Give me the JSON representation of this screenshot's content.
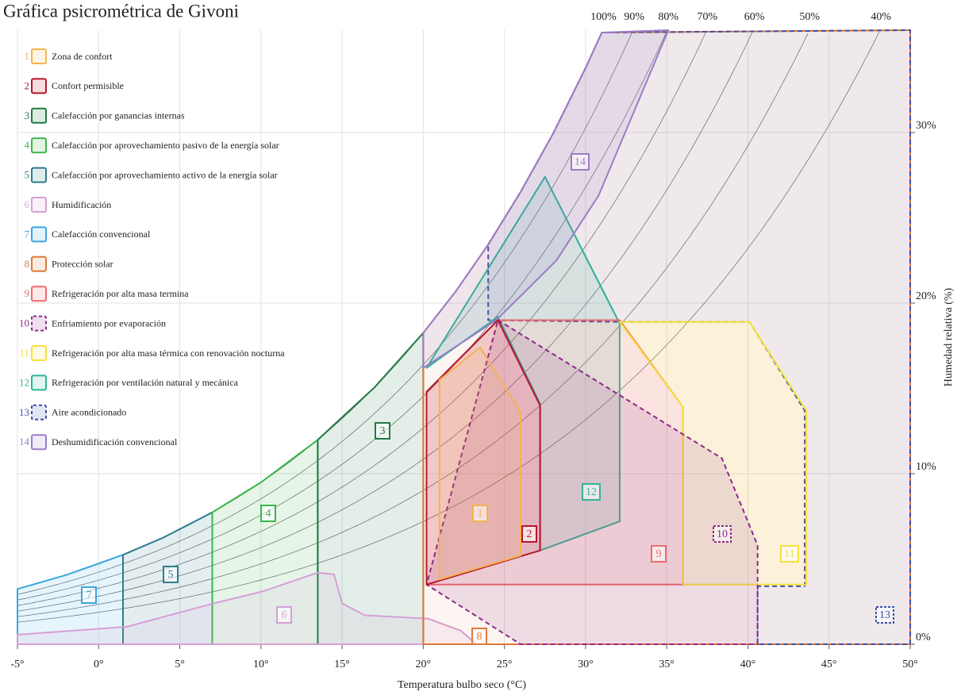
{
  "chart_data": {
    "type": "psychrometric",
    "title": "Gráfica psicrométrica de Givoni",
    "x_label": "Temperatura bulbo seco (°C)",
    "y_label": "Humedad relativa (%)",
    "xlim": [
      -5,
      50
    ],
    "ylim": [
      0,
      36
    ],
    "xticks": [
      {
        "value": -5,
        "label": "-5°"
      },
      {
        "value": 0,
        "label": "0°"
      },
      {
        "value": 5,
        "label": "5°"
      },
      {
        "value": 10,
        "label": "10°"
      },
      {
        "value": 15,
        "label": "15°"
      },
      {
        "value": 20,
        "label": "20°"
      },
      {
        "value": 25,
        "label": "25°"
      },
      {
        "value": 30,
        "label": "30°"
      },
      {
        "value": 35,
        "label": "35°"
      },
      {
        "value": 40,
        "label": "40°"
      },
      {
        "value": 45,
        "label": "45°"
      },
      {
        "value": 50,
        "label": "50°"
      }
    ],
    "yticks": [
      {
        "value": 0,
        "label": "0%"
      },
      {
        "value": 10,
        "label": "10%"
      },
      {
        "value": 20,
        "label": "20%"
      },
      {
        "value": 30,
        "label": "30%"
      }
    ],
    "grid": true,
    "rh_curves": [
      {
        "value": 100,
        "label": "100%"
      },
      {
        "value": 90,
        "label": "90%"
      },
      {
        "value": 80,
        "label": "80%"
      },
      {
        "value": 70,
        "label": "70%"
      },
      {
        "value": 60,
        "label": "60%"
      },
      {
        "value": 50,
        "label": "50%"
      },
      {
        "value": 40,
        "label": "40%"
      }
    ],
    "zones": [
      {
        "id": "1",
        "label": "Zona de confort",
        "color": "#f6b24f",
        "dashed": false,
        "x": [
          21,
          23.5,
          26,
          26,
          21
        ],
        "y": [
          15.5,
          17.4,
          13.6,
          5.2,
          3.8
        ]
      },
      {
        "id": "2",
        "label": "Confort permisible",
        "color": "#b5162b",
        "dashed": false,
        "x": [
          20.2,
          24.6,
          27.2,
          27.2,
          20.2
        ],
        "y": [
          14.8,
          19.0,
          14.0,
          5.5,
          3.5
        ]
      },
      {
        "id": "3",
        "label": "Calefacción por ganancias internas",
        "color": "#1f7a43",
        "dashed": false,
        "x": [
          13.5,
          20,
          20,
          17,
          13.5
        ],
        "y": [
          0,
          0,
          18.25,
          15.06,
          11.98
        ]
      },
      {
        "id": "4",
        "label": "Calefacción por aprovechamiento pasivo de la energía solar",
        "color": "#3bb54a",
        "dashed": false,
        "x": [
          7,
          13.5,
          13.5,
          10,
          7
        ],
        "y": [
          0,
          0,
          11.98,
          9.49,
          7.73
        ]
      },
      {
        "id": "5",
        "label": "Calefacción por aprovechamiento activo de la energía solar",
        "color": "#2d7d8c",
        "dashed": false,
        "x": [
          1.5,
          7,
          7,
          4,
          1.5
        ],
        "y": [
          0,
          0,
          7.73,
          6.26,
          5.24
        ]
      },
      {
        "id": "6",
        "label": "Humidificación",
        "color": "#d79fd6",
        "dashed": false,
        "x": [
          -5,
          1.75,
          7.1,
          10.1,
          13.5,
          14.5,
          15,
          16.4,
          20.3,
          22.3,
          23.3,
          -5
        ],
        "y": [
          0.56,
          1.03,
          2.4,
          3.1,
          4.2,
          4.1,
          2.4,
          1.7,
          1.5,
          0.8,
          0,
          0
        ]
      },
      {
        "id": "7",
        "label": "Calefacción convencional",
        "color": "#3ba7dd",
        "dashed": false,
        "x": [
          -5,
          1.5,
          1.5,
          -2,
          -5
        ],
        "y": [
          0,
          0,
          5.24,
          4.06,
          3.24
        ]
      },
      {
        "id": "8",
        "label": "Protección solar",
        "color": "#e2773b",
        "dashed": false,
        "x": [
          20,
          50,
          50,
          31,
          30,
          28,
          26,
          24,
          22,
          20
        ],
        "y": [
          0,
          0,
          36,
          35.86,
          33.78,
          29.94,
          26.52,
          23.43,
          20.69,
          18.25
        ]
      },
      {
        "id": "9",
        "label": "Refrigeración por alta masa termina",
        "color": "#ef6b6b",
        "dashed": false,
        "x": [
          24.6,
          32.1,
          36,
          36,
          20.2,
          20.2
        ],
        "y": [
          19.0,
          19.0,
          13.9,
          3.5,
          3.5,
          14.8
        ]
      },
      {
        "id": "10",
        "label": "Enfriamiento por evaporación",
        "color": "#8e2b8c",
        "dashed": true,
        "x": [
          24.6,
          38.4,
          40.6,
          40.6,
          26,
          20.2
        ],
        "y": [
          19.0,
          10.9,
          5.8,
          0,
          0,
          3.5
        ]
      },
      {
        "id": "11",
        "label": "Refrigeración por alta masa térmica con renovación nocturna",
        "color": "#f5e13a",
        "dashed": false,
        "x": [
          32.1,
          40.1,
          43.6,
          43.6,
          36,
          36
        ],
        "y": [
          18.9,
          18.9,
          13.7,
          3.5,
          3.5,
          13.9
        ]
      },
      {
        "id": "12",
        "label": "Refrigeración por ventilación natural y mecánica",
        "color": "#2fb598",
        "dashed": false,
        "x": [
          20.2,
          27.5,
          32.1,
          32.1,
          27.2,
          27.2,
          24.6
        ],
        "y": [
          16.2,
          27.4,
          18.8,
          7.2,
          5.5,
          14.1,
          19.2
        ]
      },
      {
        "id": "13",
        "label": "Aire acondicionado",
        "color": "#3b4ea6",
        "dashed": true,
        "x": [
          24,
          26,
          28,
          30,
          31,
          50,
          50,
          40.6,
          40.6,
          43.5,
          43.5,
          40.1,
          32.1,
          24
        ],
        "y": [
          23.43,
          26.52,
          29.94,
          33.78,
          35.86,
          36,
          0,
          0,
          3.4,
          3.4,
          13.7,
          18.9,
          18.9,
          19.0
        ]
      },
      {
        "id": "14",
        "label": "Deshumidificación convencional",
        "color": "#9b7cc8",
        "dashed": false,
        "x": [
          20,
          20,
          22,
          24,
          26,
          28,
          30,
          31,
          35.1,
          30.8,
          28.2,
          24.5
        ],
        "y": [
          16.2,
          18.25,
          20.69,
          23.43,
          26.52,
          29.94,
          33.78,
          35.86,
          36,
          26.3,
          22.5,
          19.0
        ]
      }
    ]
  }
}
